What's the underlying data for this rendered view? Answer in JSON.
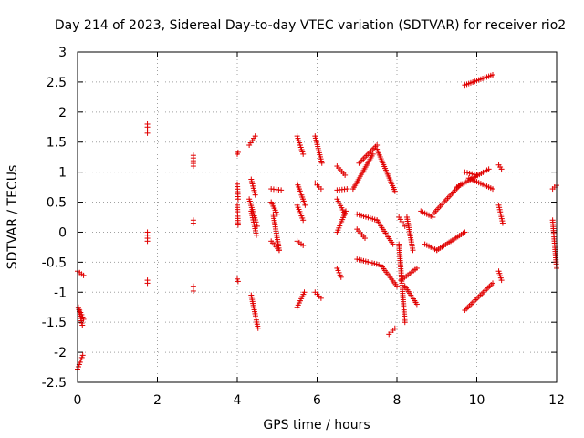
{
  "chart_data": {
    "type": "scatter",
    "title": "Day 214 of 2023, Sidereal Day-to-day VTEC variation (SDTVAR) for receiver rio2",
    "xlabel": "GPS time / hours",
    "ylabel": "SDTVAR / TECUs",
    "xlim": [
      0,
      12
    ],
    "ylim": [
      -2.5,
      3
    ],
    "xticks": [
      "0",
      "2",
      "4",
      "6",
      "8",
      "10",
      "12"
    ],
    "yticks": [
      "-2.5",
      "-2",
      "-1.5",
      "-1",
      "-0.5",
      "0",
      "0.5",
      "1",
      "1.5",
      "2",
      "2.5",
      "3"
    ],
    "xtick_values": [
      0,
      2,
      4,
      6,
      8,
      10,
      12
    ],
    "ytick_values": [
      -2.5,
      -2,
      -1.5,
      -1,
      -0.5,
      0,
      0.5,
      1,
      1.5,
      2,
      2.5,
      3
    ],
    "grid": true,
    "marker": "+",
    "marker_color": "#e00000",
    "segments": [
      {
        "x0": 0.0,
        "x1": 0.15,
        "y0": -0.65,
        "y1": -0.72
      },
      {
        "x0": 0.02,
        "x1": 0.12,
        "y0": -1.25,
        "y1": -1.55
      },
      {
        "x0": 0.05,
        "x1": 0.15,
        "y0": -1.3,
        "y1": -1.45
      },
      {
        "x0": 0.0,
        "x1": 0.13,
        "y0": -2.28,
        "y1": -2.05
      },
      {
        "x0": 1.75,
        "x1": 1.75,
        "y0": 1.65,
        "y1": 1.8
      },
      {
        "x0": 1.75,
        "x1": 1.75,
        "y0": 0.0,
        "y1": -0.15
      },
      {
        "x0": 1.75,
        "x1": 1.75,
        "y0": -0.8,
        "y1": -0.85
      },
      {
        "x0": 2.9,
        "x1": 2.9,
        "y0": 1.1,
        "y1": 1.28
      },
      {
        "x0": 2.9,
        "x1": 2.9,
        "y0": 0.15,
        "y1": 0.2
      },
      {
        "x0": 2.9,
        "x1": 2.9,
        "y0": -0.9,
        "y1": -0.98
      },
      {
        "x0": 4.0,
        "x1": 4.02,
        "y0": 1.3,
        "y1": 1.33
      },
      {
        "x0": 4.0,
        "x1": 4.02,
        "y0": 0.8,
        "y1": 0.55
      },
      {
        "x0": 4.0,
        "x1": 4.02,
        "y0": 0.45,
        "y1": 0.12
      },
      {
        "x0": 4.0,
        "x1": 4.02,
        "y0": -0.78,
        "y1": -0.82
      },
      {
        "x0": 4.3,
        "x1": 4.45,
        "y0": 1.45,
        "y1": 1.6
      },
      {
        "x0": 4.35,
        "x1": 4.45,
        "y0": 0.88,
        "y1": 0.62
      },
      {
        "x0": 4.3,
        "x1": 4.5,
        "y0": 0.55,
        "y1": 0.1
      },
      {
        "x0": 4.35,
        "x1": 4.48,
        "y0": 0.35,
        "y1": -0.05
      },
      {
        "x0": 4.35,
        "x1": 4.52,
        "y0": -1.05,
        "y1": -1.6
      },
      {
        "x0": 4.85,
        "x1": 5.1,
        "y0": 0.72,
        "y1": 0.7
      },
      {
        "x0": 4.85,
        "x1": 5.0,
        "y0": 0.5,
        "y1": 0.3
      },
      {
        "x0": 4.9,
        "x1": 5.05,
        "y0": 0.3,
        "y1": -0.3
      },
      {
        "x0": 4.85,
        "x1": 5.05,
        "y0": -0.15,
        "y1": -0.3
      },
      {
        "x0": 5.5,
        "x1": 5.65,
        "y0": 1.6,
        "y1": 1.3
      },
      {
        "x0": 5.5,
        "x1": 5.7,
        "y0": 0.82,
        "y1": 0.45
      },
      {
        "x0": 5.5,
        "x1": 5.65,
        "y0": 0.45,
        "y1": 0.2
      },
      {
        "x0": 5.5,
        "x1": 5.65,
        "y0": -0.15,
        "y1": -0.22
      },
      {
        "x0": 5.5,
        "x1": 5.68,
        "y0": -1.25,
        "y1": -1.0
      },
      {
        "x0": 5.95,
        "x1": 6.12,
        "y0": 1.6,
        "y1": 1.15
      },
      {
        "x0": 5.95,
        "x1": 6.1,
        "y0": 0.82,
        "y1": 0.72
      },
      {
        "x0": 5.95,
        "x1": 6.1,
        "y0": -1.0,
        "y1": -1.1
      },
      {
        "x0": 6.5,
        "x1": 6.7,
        "y0": 1.1,
        "y1": 0.95
      },
      {
        "x0": 6.5,
        "x1": 6.75,
        "y0": 0.7,
        "y1": 0.72
      },
      {
        "x0": 6.5,
        "x1": 6.7,
        "y0": 0.55,
        "y1": 0.3
      },
      {
        "x0": 6.5,
        "x1": 6.72,
        "y0": 0.0,
        "y1": 0.35
      },
      {
        "x0": 6.5,
        "x1": 6.6,
        "y0": -0.6,
        "y1": -0.75
      },
      {
        "x0": 6.9,
        "x1": 7.4,
        "y0": 0.72,
        "y1": 1.3
      },
      {
        "x0": 7.05,
        "x1": 7.5,
        "y0": 1.15,
        "y1": 1.45
      },
      {
        "x0": 7.5,
        "x1": 7.95,
        "y0": 1.38,
        "y1": 0.68
      },
      {
        "x0": 7.0,
        "x1": 7.5,
        "y0": 0.3,
        "y1": 0.2
      },
      {
        "x0": 7.5,
        "x1": 7.9,
        "y0": 0.2,
        "y1": -0.2
      },
      {
        "x0": 7.0,
        "x1": 7.2,
        "y0": 0.05,
        "y1": -0.1
      },
      {
        "x0": 7.0,
        "x1": 7.6,
        "y0": -0.45,
        "y1": -0.55
      },
      {
        "x0": 7.6,
        "x1": 8.0,
        "y0": -0.55,
        "y1": -0.9
      },
      {
        "x0": 7.8,
        "x1": 7.95,
        "y0": -1.7,
        "y1": -1.6
      },
      {
        "x0": 8.05,
        "x1": 8.2,
        "y0": 0.25,
        "y1": 0.1
      },
      {
        "x0": 8.05,
        "x1": 8.2,
        "y0": -0.2,
        "y1": -1.5
      },
      {
        "x0": 8.1,
        "x1": 8.5,
        "y0": -0.8,
        "y1": -0.6
      },
      {
        "x0": 8.2,
        "x1": 8.5,
        "y0": -0.9,
        "y1": -1.2
      },
      {
        "x0": 8.25,
        "x1": 8.4,
        "y0": 0.25,
        "y1": -0.3
      },
      {
        "x0": 8.6,
        "x1": 8.9,
        "y0": 0.35,
        "y1": 0.25
      },
      {
        "x0": 8.7,
        "x1": 9.0,
        "y0": -0.2,
        "y1": -0.3
      },
      {
        "x0": 9.0,
        "x1": 9.7,
        "y0": -0.3,
        "y1": 0.0
      },
      {
        "x0": 8.9,
        "x1": 9.6,
        "y0": 0.3,
        "y1": 0.8
      },
      {
        "x0": 9.5,
        "x1": 10.3,
        "y0": 0.75,
        "y1": 1.05
      },
      {
        "x0": 9.7,
        "x1": 10.0,
        "y0": 1.0,
        "y1": 0.95
      },
      {
        "x0": 9.8,
        "x1": 10.4,
        "y0": 0.9,
        "y1": 0.72
      },
      {
        "x0": 9.7,
        "x1": 10.4,
        "y0": -1.3,
        "y1": -0.85
      },
      {
        "x0": 9.7,
        "x1": 10.4,
        "y0": 2.45,
        "y1": 2.62
      },
      {
        "x0": 10.55,
        "x1": 10.62,
        "y0": 1.12,
        "y1": 1.05
      },
      {
        "x0": 10.55,
        "x1": 10.65,
        "y0": 0.45,
        "y1": 0.15
      },
      {
        "x0": 10.55,
        "x1": 10.62,
        "y0": -0.65,
        "y1": -0.8
      },
      {
        "x0": 11.9,
        "x1": 12.0,
        "y0": 0.72,
        "y1": 0.78
      },
      {
        "x0": 11.9,
        "x1": 12.0,
        "y0": 0.2,
        "y1": -0.6
      }
    ]
  }
}
